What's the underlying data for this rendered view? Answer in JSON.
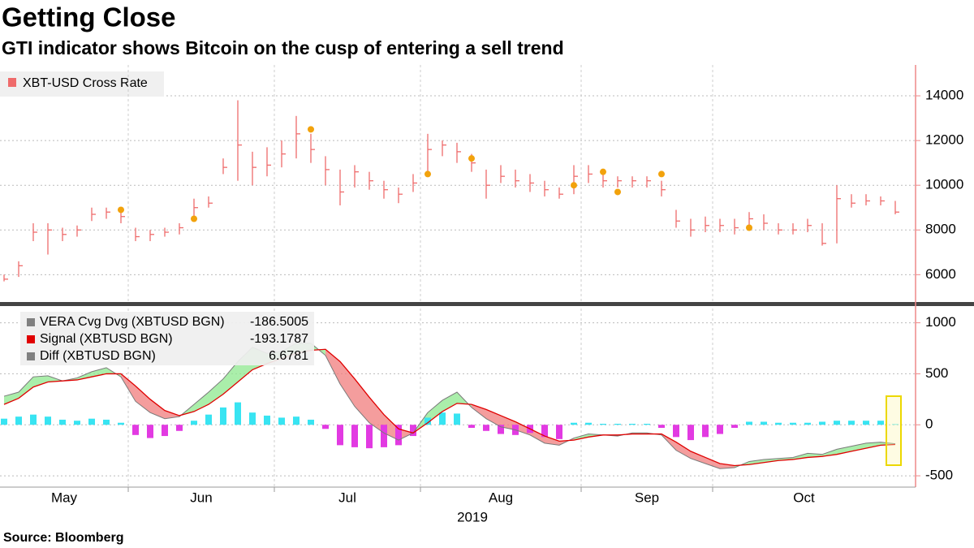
{
  "source": "Source: Bloomberg",
  "chart_data": [
    {
      "type": "ohlc",
      "title": "Getting Close",
      "subtitle": "GTI indicator shows Bitcoin on the cusp of entering a sell trend",
      "ylim": [
        4850,
        15200
      ],
      "yticks": [
        6000,
        8000,
        10000,
        12000,
        14000
      ],
      "grid": true,
      "series": [
        {
          "name": "XBT-USD Cross Rate",
          "color": "#ef6b6b",
          "high": [
            6000,
            6600,
            8300,
            8300,
            8100,
            8200,
            9000,
            9000,
            8900,
            8100,
            8000,
            8100,
            8300,
            9400,
            9500,
            11200,
            13800,
            11500,
            11700,
            12000,
            13100,
            12300,
            11300,
            10700,
            10900,
            10600,
            10200,
            9900,
            10500,
            12300,
            12000,
            11900,
            11400,
            10700,
            10900,
            10700,
            10500,
            10200,
            9900,
            10900,
            10900,
            10500,
            10400,
            10400,
            10400,
            10200,
            8900,
            8500,
            8600,
            8500,
            8500,
            8800,
            8700,
            8300,
            8300,
            8500,
            8300,
            10000,
            9600,
            9600,
            9500,
            9300
          ],
          "low": [
            5700,
            5900,
            7500,
            6900,
            7500,
            7700,
            8400,
            8500,
            8300,
            7500,
            7500,
            7700,
            7800,
            8600,
            9000,
            10500,
            10200,
            10000,
            10400,
            10800,
            11200,
            11000,
            10000,
            9100,
            9900,
            9800,
            9400,
            9200,
            9700,
            10400,
            11300,
            11000,
            10600,
            9400,
            10100,
            9900,
            9700,
            9500,
            9400,
            9600,
            10100,
            9900,
            9900,
            9900,
            9900,
            9500,
            8100,
            7700,
            7900,
            7900,
            7800,
            8000,
            8000,
            7800,
            7800,
            7900,
            7300,
            7400,
            9000,
            9100,
            9100,
            8700
          ],
          "close": [
            5800,
            6400,
            7900,
            8000,
            7800,
            8000,
            8700,
            8800,
            8600,
            7700,
            7800,
            7900,
            8100,
            9000,
            9200,
            10800,
            11800,
            10800,
            10900,
            11400,
            12300,
            11600,
            10700,
            9700,
            10600,
            10200,
            9800,
            9600,
            10100,
            11600,
            11800,
            11500,
            11000,
            10000,
            10400,
            10200,
            10100,
            9800,
            9600,
            10400,
            10500,
            10200,
            10200,
            10200,
            10200,
            9800,
            8400,
            8000,
            8200,
            8200,
            8100,
            8500,
            8300,
            8000,
            8000,
            8200,
            7400,
            9400,
            9200,
            9300,
            9300,
            8800
          ]
        },
        {
          "type": "markers",
          "color": "#f2a20c",
          "values": [
            null,
            null,
            null,
            null,
            null,
            null,
            null,
            null,
            8900,
            null,
            null,
            null,
            null,
            8500,
            null,
            null,
            null,
            null,
            null,
            null,
            null,
            12500,
            null,
            null,
            null,
            null,
            null,
            null,
            null,
            10500,
            null,
            null,
            11200,
            null,
            null,
            null,
            null,
            null,
            null,
            10000,
            null,
            10600,
            9700,
            null,
            null,
            10500,
            null,
            null,
            null,
            null,
            null,
            8100,
            null,
            null,
            null,
            null,
            null,
            null,
            null,
            null,
            null,
            null
          ]
        }
      ]
    },
    {
      "type": "line",
      "categories": [
        "May",
        null,
        null,
        null,
        null,
        null,
        null,
        null,
        null,
        "Jun",
        null,
        null,
        null,
        null,
        null,
        null,
        null,
        null,
        null,
        "Jul",
        null,
        null,
        null,
        null,
        null,
        null,
        null,
        null,
        null,
        "Aug",
        null,
        null,
        null,
        null,
        null,
        null,
        null,
        null,
        null,
        null,
        "Sep",
        null,
        null,
        null,
        null,
        null,
        null,
        null,
        null,
        "Oct",
        null,
        null,
        null,
        null,
        null,
        null,
        null,
        null,
        null,
        null,
        null,
        null
      ],
      "xlabel": "2019",
      "ylim": [
        -595,
        1140
      ],
      "yticks": [
        -500,
        0,
        500,
        1000
      ],
      "grid": true,
      "above_color": "#8ee88e",
      "below_color": "#f07c7c",
      "series": [
        {
          "name": "VERA Cvg Dvg (XBTUSD BGN)",
          "color": "#808080",
          "values": [
            280,
            320,
            470,
            480,
            430,
            460,
            520,
            560,
            470,
            230,
            120,
            60,
            80,
            200,
            320,
            450,
            620,
            760,
            700,
            720,
            800,
            800,
            680,
            400,
            180,
            20,
            -80,
            -150,
            -80,
            120,
            240,
            320,
            170,
            60,
            -20,
            -50,
            -100,
            -180,
            -200,
            -130,
            -90,
            -100,
            -110,
            -80,
            -80,
            -100,
            -250,
            -330,
            -380,
            -430,
            -420,
            -360,
            -340,
            -330,
            -320,
            -280,
            -290,
            -240,
            -210,
            -180,
            -170,
            -186.5005
          ]
        },
        {
          "name": "Signal (XBTUSD BGN)",
          "color": "#e00000",
          "values": [
            200,
            260,
            370,
            420,
            430,
            440,
            470,
            500,
            500,
            380,
            250,
            140,
            90,
            130,
            200,
            300,
            420,
            540,
            600,
            650,
            700,
            730,
            740,
            620,
            450,
            270,
            100,
            -40,
            -80,
            20,
            130,
            210,
            200,
            150,
            90,
            30,
            -40,
            -110,
            -160,
            -150,
            -120,
            -100,
            -100,
            -90,
            -90,
            -90,
            -170,
            -260,
            -320,
            -380,
            -400,
            -390,
            -370,
            -350,
            -340,
            -320,
            -310,
            -290,
            -260,
            -230,
            -200,
            -193.1787
          ]
        },
        {
          "name": "Diff (XBTUSD BGN)",
          "color": "#808080",
          "type": "histogram",
          "positive_color": "#38e4f2",
          "negative_color": "#e23ae2",
          "values": [
            60,
            80,
            100,
            80,
            50,
            40,
            60,
            50,
            20,
            -100,
            -130,
            -110,
            -60,
            40,
            100,
            170,
            220,
            120,
            90,
            70,
            80,
            50,
            -40,
            -200,
            -220,
            -230,
            -220,
            -200,
            -110,
            70,
            120,
            110,
            -30,
            -60,
            -90,
            -100,
            -80,
            -120,
            -140,
            20,
            20,
            10,
            10,
            10,
            10,
            -30,
            -120,
            -150,
            -120,
            -90,
            -30,
            30,
            30,
            20,
            20,
            20,
            30,
            40,
            40,
            40,
            40,
            6.6781
          ]
        }
      ]
    }
  ]
}
